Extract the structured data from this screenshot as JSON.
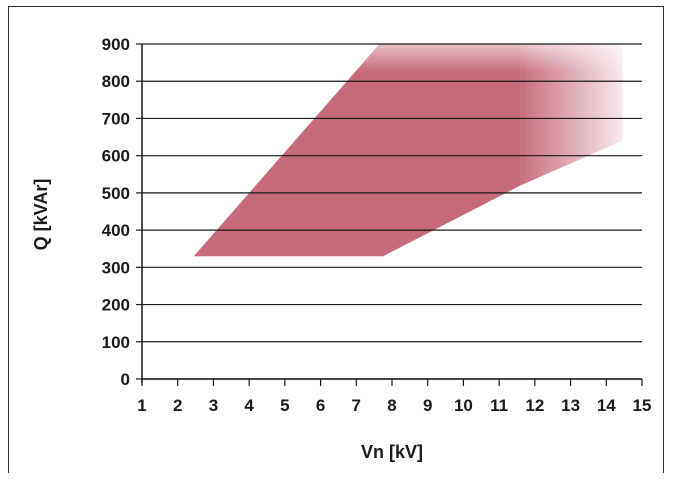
{
  "chart_data": {
    "type": "area",
    "xlabel": "Vn [kV]",
    "ylabel": "Q [kVAr]",
    "xlim": [
      1,
      15
    ],
    "ylim": [
      0,
      900
    ],
    "x_ticks": [
      "1",
      "2",
      "3",
      "4",
      "5",
      "6",
      "7",
      "8",
      "9",
      "10",
      "11",
      "12",
      "13",
      "14",
      "15"
    ],
    "y_ticks": [
      "0",
      "100",
      "200",
      "300",
      "400",
      "500",
      "600",
      "700",
      "800",
      "900"
    ],
    "grid": "horizontal",
    "fill_color": "#c56a7b",
    "series": [
      {
        "region": [
          {
            "x": 2.45,
            "y": 330
          },
          {
            "x": 7.75,
            "y": 330
          },
          {
            "x": 11.6,
            "y": 520
          },
          {
            "x": 14.45,
            "y": 640
          },
          {
            "x": 14.45,
            "y": 900
          },
          {
            "x": 7.65,
            "y": 900
          }
        ],
        "solid_until_x": 11.6,
        "fade_from_y": 860
      }
    ]
  }
}
